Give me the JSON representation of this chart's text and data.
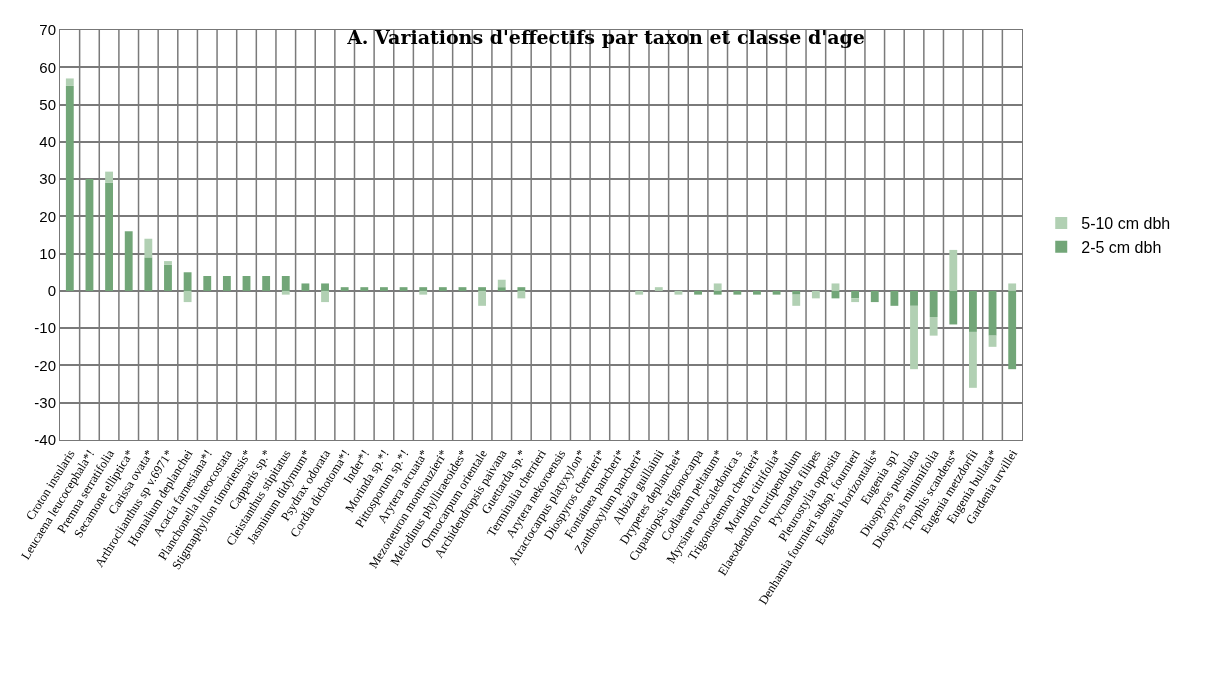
{
  "chart_data": {
    "type": "bar",
    "title": "A. Variations d'effectifs par taxon et classe d'age",
    "categories": [
      "Croton insularis",
      "Leucaena leucocephala*!",
      "Premna serratifolia",
      "Secamone elliptica*",
      "Carissa ovata*",
      "Arthroclianthus sp v.6971*",
      "Homalium deplanchei",
      "Acacia farnesiana*!",
      "Planchonella luteocostata",
      "Stigmaphyllon timoriensis*",
      "Capparis sp.*",
      "Cleistanthus stipitatus",
      "Jasminum didymum*",
      "Psydrax odorata",
      "Cordia dichotoma*!",
      "Inder*!",
      "Morinda sp.*!",
      "Pittosporum sp.*!",
      "Arytera arcuata*",
      "Mezoneuron montrouzieri*",
      "Melodinus phylliraeoides*",
      "Ormocarpum orientale",
      "Archidendropsis paivana",
      "Guettarda sp.*",
      "Terminalia cherrieri",
      "Arytera nekoroensis",
      "Atractocarpus platyxylon*",
      "Diospyros cherrieri*",
      "Fontainea pancheri*",
      "Zanthoxylum pancheri*",
      "Albizia guillainii",
      "Drypetes deplanchei*",
      "Cupaniopsis trigonocarpa",
      "Codiaeum peltatum*",
      "Myrsine novocaledonica s",
      "Trigonostemon cherrieri*",
      "Morinda citrifolia*",
      "Elaeodendron curtipendulum",
      "Pycnandra filipes",
      "Pleurostylia opposita",
      "Denhamia fournieri subsp. fournieri",
      "Eugenia horizontalis*",
      "Eugenia sp1",
      "Diospyros pustulata",
      "Diospyros minimifolia",
      "Trophis scandens*",
      "Eugenia metzdorfii",
      "Eugenia bullata*",
      "Gardenia urvillei"
    ],
    "stacked": true,
    "series": [
      {
        "name": "2-5 cm dbh",
        "color": "#72a678",
        "values": [
          55,
          30,
          29,
          16,
          9,
          7,
          5,
          4,
          4,
          4,
          4,
          4,
          2,
          2,
          1,
          1,
          1,
          1,
          1,
          1,
          1,
          1,
          1,
          1,
          0,
          0,
          0,
          0,
          0,
          0,
          0,
          0,
          -1,
          -1,
          -1,
          -1,
          -1,
          -1,
          0,
          -2,
          -2,
          -3,
          -4,
          -4,
          -7,
          -9,
          -11,
          -12,
          -21
        ]
      },
      {
        "name": "5-10 cm dbh",
        "color": "#b1d0b3",
        "values": [
          2,
          0,
          3,
          0,
          5,
          1,
          -3,
          0,
          0,
          0,
          0,
          -1,
          0,
          -3,
          0,
          0,
          0,
          0,
          -1,
          0,
          0,
          -4,
          2,
          -2,
          0,
          0,
          0,
          0,
          0,
          -1,
          1,
          -1,
          0,
          2,
          0,
          0,
          0,
          -3,
          -2,
          2,
          -1,
          0,
          0,
          -17,
          -5,
          11,
          -15,
          -3,
          2
        ]
      }
    ],
    "ylim": [
      -40,
      70
    ],
    "yticks": [
      -40,
      -30,
      -20,
      -10,
      0,
      10,
      20,
      30,
      40,
      50,
      60,
      70
    ],
    "grid": true,
    "legend": "right"
  }
}
